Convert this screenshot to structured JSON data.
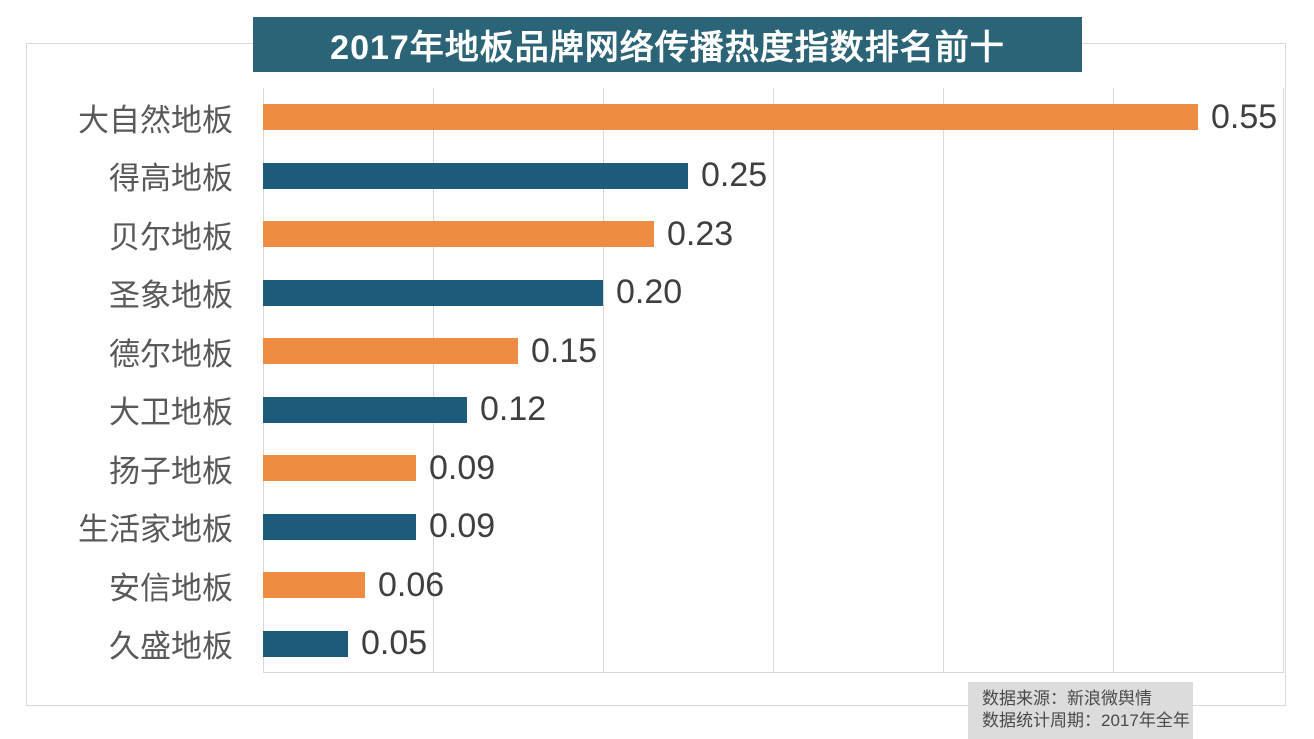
{
  "title": "2017年地板品牌网络传播热度指数排名前十",
  "chart_data": {
    "type": "bar",
    "orientation": "horizontal",
    "title": "2017年地板品牌网络传播热度指数排名前十",
    "categories": [
      "大自然地板",
      "得高地板",
      "贝尔地板",
      "圣象地板",
      "德尔地板",
      "大卫地板",
      "扬子地板",
      "生活家地板",
      "安信地板",
      "久盛地板"
    ],
    "values": [
      0.55,
      0.25,
      0.23,
      0.2,
      0.15,
      0.12,
      0.09,
      0.09,
      0.06,
      0.05
    ],
    "value_labels": [
      "0.55",
      "0.25",
      "0.23",
      "0.20",
      "0.15",
      "0.12",
      "0.09",
      "0.09",
      "0.06",
      "0.05"
    ],
    "xlabel": "",
    "ylabel": "",
    "xlim": [
      0,
      0.6
    ],
    "gridline_interval": 0.1,
    "grid": true,
    "legend": false,
    "bar_colors_alternating": [
      "#ee8c44",
      "#1e5b7a"
    ]
  },
  "colors": {
    "title_background": "#2b6377",
    "title_text": "#ffffff",
    "orange_bar": "#ee8c44",
    "teal_bar": "#1e5b7a",
    "gridline": "#d8d8d8",
    "frame_border": "#d9d9d9",
    "category_label": "#595959",
    "value_label": "#3f3f3f",
    "source_background": "#dcdcdc",
    "source_text": "#4a4a4a"
  },
  "source_note": {
    "line1": "数据来源：新浪微舆情",
    "line2": "数据统计周期：2017年全年"
  }
}
